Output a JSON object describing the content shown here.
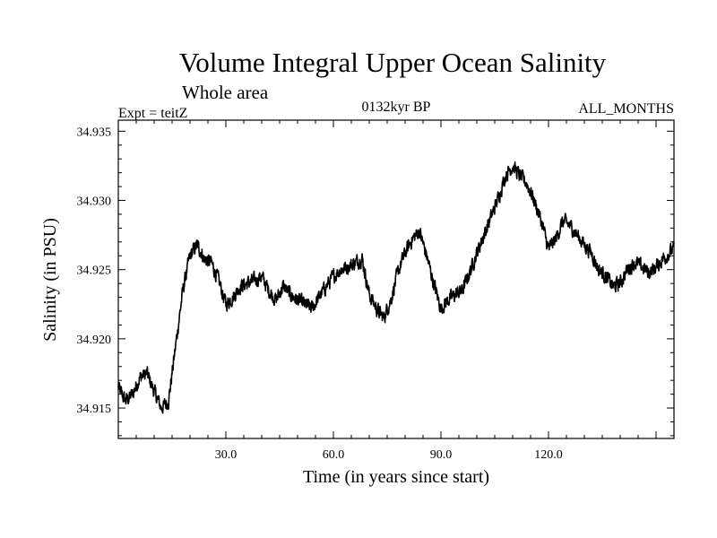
{
  "chart_data": {
    "type": "line",
    "title": "Volume Integral Upper Ocean Salinity",
    "subtitle": "Whole area",
    "experiment": "Expt = teitZ",
    "period": "0132kyr BP",
    "months": "ALL_MONTHS",
    "xlabel": "Time (in years since start)",
    "ylabel": "Salinity (in PSU)",
    "xlim": [
      0,
      155
    ],
    "ylim": [
      34.9128,
      34.9358
    ],
    "xticks": [
      30,
      60,
      90,
      120
    ],
    "xtick_labels": [
      "30.0",
      "60.0",
      "90.0",
      "120.0"
    ],
    "yticks": [
      34.915,
      34.92,
      34.925,
      34.93,
      34.935
    ],
    "ytick_labels": [
      "34.915",
      "34.920",
      "34.925",
      "34.930",
      "34.935"
    ],
    "series": [
      {
        "name": "salinity",
        "color": "#000000",
        "x": [
          0,
          2,
          4,
          6,
          8,
          10,
          12,
          14,
          16,
          18,
          20,
          22,
          24,
          26,
          28,
          30,
          32,
          34,
          36,
          38,
          40,
          42,
          44,
          46,
          48,
          50,
          52,
          54,
          56,
          58,
          60,
          62,
          64,
          66,
          68,
          70,
          72,
          74,
          76,
          78,
          80,
          82,
          84,
          86,
          88,
          90,
          92,
          94,
          96,
          98,
          100,
          102,
          104,
          106,
          108,
          110,
          112,
          114,
          116,
          118,
          120,
          122,
          124,
          126,
          128,
          130,
          132,
          134,
          136,
          138,
          140,
          142,
          144,
          146,
          148,
          150,
          152,
          155
        ],
        "y": [
          34.9165,
          34.9155,
          34.916,
          34.9172,
          34.9175,
          34.9162,
          34.915,
          34.9155,
          34.9195,
          34.9235,
          34.926,
          34.9268,
          34.9258,
          34.9255,
          34.9242,
          34.9225,
          34.923,
          34.9238,
          34.924,
          34.9242,
          34.9245,
          34.9235,
          34.9228,
          34.9238,
          34.9232,
          34.9228,
          34.9225,
          34.9222,
          34.923,
          34.9238,
          34.9245,
          34.925,
          34.9252,
          34.9255,
          34.9258,
          34.9232,
          34.9222,
          34.9215,
          34.9228,
          34.9248,
          34.9262,
          34.9272,
          34.9278,
          34.926,
          34.924,
          34.9222,
          34.9228,
          34.9232,
          34.9235,
          34.9248,
          34.9262,
          34.9275,
          34.9288,
          34.9302,
          34.9318,
          34.9325,
          34.9318,
          34.9312,
          34.93,
          34.9285,
          34.9265,
          34.9272,
          34.9285,
          34.9282,
          34.9275,
          34.9268,
          34.9262,
          34.925,
          34.9245,
          34.9238,
          34.924,
          34.925,
          34.9255,
          34.9252,
          34.9248,
          34.9252,
          34.9258,
          34.9265
        ],
        "noise_amplitude": 0.0009
      }
    ]
  }
}
